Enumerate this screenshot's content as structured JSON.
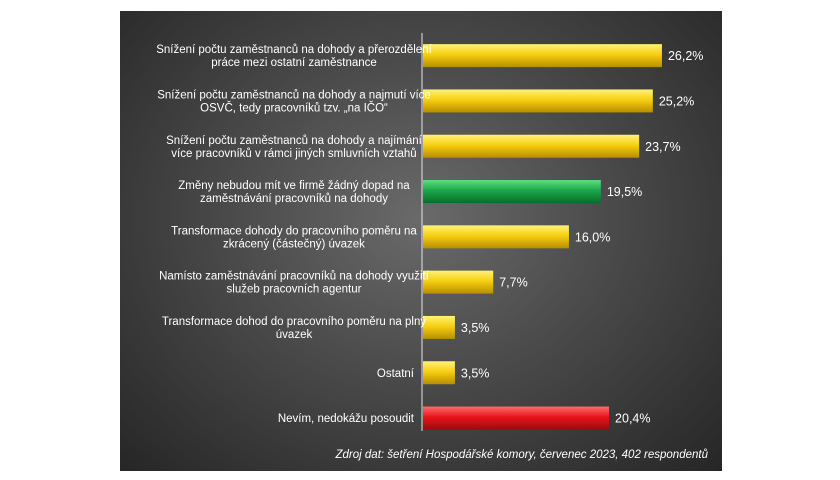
{
  "chart_data": {
    "type": "bar",
    "orientation": "horizontal",
    "categories": [
      [
        "Snížení počtu zaměstnanců na dohody a přerozdělení",
        "práce mezi ostatní zaměstnance"
      ],
      [
        "Snížení počtu zaměstnanců na dohody a najmutí více",
        "OSVČ, tedy pracovníků tzv. „na IČO“"
      ],
      [
        "Snížení počtu zaměstnanců na dohody a najímání",
        "více pracovníků v rámci jiných smluvních vztahů"
      ],
      [
        "Změny nebudou mít ve firmě žádný dopad na",
        "zaměstnávání pracovníků na dohody"
      ],
      [
        "Transformace dohody do pracovního poměru na",
        "zkrácený (částečný) úvazek"
      ],
      [
        "Namísto zaměstnávání pracovníků na dohody využití",
        "služeb pracovních agentur"
      ],
      [
        "Transformace dohod do pracovního poměru na plný",
        "úvazek"
      ],
      [
        "Ostatní"
      ],
      [
        "Nevím, nedokážu posoudit"
      ]
    ],
    "values": [
      26.2,
      25.2,
      23.7,
      19.5,
      16.0,
      7.7,
      3.5,
      3.5,
      20.4
    ],
    "value_labels": [
      "26,2%",
      "25,2%",
      "23,7%",
      "19,5%",
      "16,0%",
      "7,7%",
      "3,5%",
      "3,5%",
      "20,4%"
    ],
    "bar_colors": [
      "#f5c800",
      "#f5c800",
      "#f5c800",
      "#1aa84a",
      "#f5c800",
      "#f5c800",
      "#f5c800",
      "#f5c800",
      "#e8161b"
    ],
    "xlim": [
      0,
      30
    ],
    "grid": false,
    "legend": "none",
    "source": "Zdroj dat: šetření Hospodářské komory, červenec 2023, 402 respondentů"
  }
}
